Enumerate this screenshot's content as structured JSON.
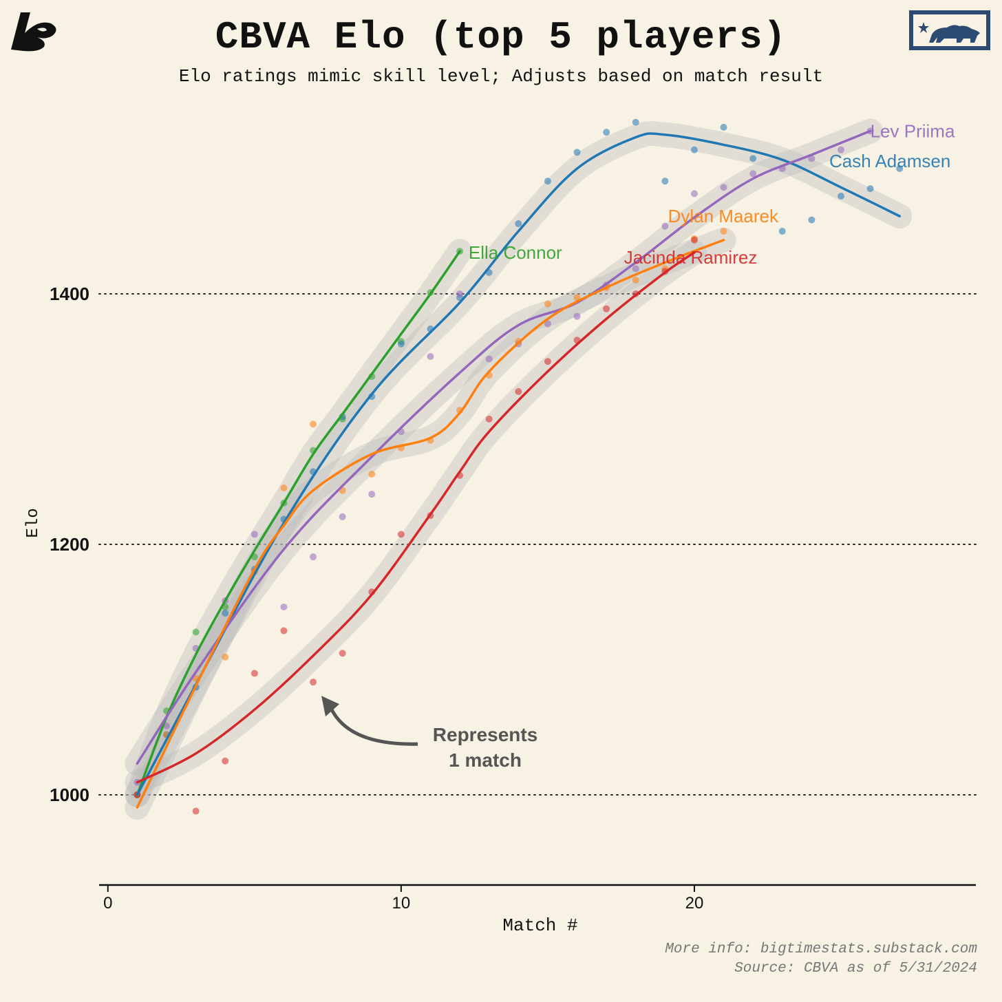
{
  "header": {
    "title": "CBVA Elo (top 5 players)",
    "subtitle": "Elo ratings mimic skill level; Adjusts based on match result"
  },
  "footer": {
    "more_info": "More info: bigtimestats.substack.com",
    "source": "Source: CBVA as of 5/31/2024"
  },
  "logos": {
    "left": "substack-s-logo",
    "right": "california-flag-bear-logo"
  },
  "chart_data": {
    "type": "scatter",
    "xlabel": "Match #",
    "ylabel": "Elo",
    "xlim": [
      -0.3,
      29.6
    ],
    "ylim": [
      928,
      1528
    ],
    "xticks": [
      0,
      10,
      20
    ],
    "yticks": [
      1000,
      1200,
      1400
    ],
    "grid": "horizontal dotted",
    "annotation": {
      "text": [
        "Represents",
        "1 match"
      ],
      "points_to": [
        7,
        1090
      ]
    },
    "series": [
      {
        "name": "Ella Connor",
        "color": "#2ca02c",
        "points": [
          [
            1,
            1000
          ],
          [
            2,
            1067
          ],
          [
            3,
            1130
          ],
          [
            4,
            1150
          ],
          [
            5,
            1190
          ],
          [
            6,
            1233
          ],
          [
            7,
            1275
          ],
          [
            8,
            1300
          ],
          [
            9,
            1334
          ],
          [
            10,
            1362
          ],
          [
            11,
            1401
          ],
          [
            12,
            1434
          ]
        ],
        "trend": [
          [
            1,
            1000
          ],
          [
            2,
            1062
          ],
          [
            3,
            1112
          ],
          [
            4,
            1155
          ],
          [
            5,
            1195
          ],
          [
            6,
            1233
          ],
          [
            7,
            1272
          ],
          [
            8,
            1304
          ],
          [
            9,
            1336
          ],
          [
            10,
            1368
          ],
          [
            11,
            1400
          ],
          [
            12,
            1434
          ]
        ]
      },
      {
        "name": "Cash Adamsen",
        "color": "#1f77b4",
        "points": [
          [
            1,
            1000
          ],
          [
            2,
            1048
          ],
          [
            3,
            1086
          ],
          [
            4,
            1145
          ],
          [
            5,
            1180
          ],
          [
            6,
            1220
          ],
          [
            7,
            1258
          ],
          [
            8,
            1302
          ],
          [
            9,
            1318
          ],
          [
            10,
            1360
          ],
          [
            11,
            1372
          ],
          [
            12,
            1397
          ],
          [
            13,
            1417
          ],
          [
            14,
            1456
          ],
          [
            15,
            1490
          ],
          [
            16,
            1513
          ],
          [
            17,
            1529
          ],
          [
            18,
            1537
          ],
          [
            19,
            1490
          ],
          [
            20,
            1515
          ],
          [
            21,
            1533
          ],
          [
            22,
            1508
          ],
          [
            23,
            1450
          ],
          [
            24,
            1459
          ],
          [
            25,
            1478
          ],
          [
            26,
            1484
          ],
          [
            27,
            1500
          ]
        ],
        "trend": [
          [
            1,
            1000
          ],
          [
            3,
            1088
          ],
          [
            6,
            1217
          ],
          [
            9,
            1320
          ],
          [
            12,
            1393
          ],
          [
            14,
            1450
          ],
          [
            16,
            1500
          ],
          [
            18,
            1525
          ],
          [
            19,
            1527
          ],
          [
            21,
            1519
          ],
          [
            23,
            1507
          ],
          [
            25,
            1485
          ],
          [
            27,
            1462
          ]
        ]
      },
      {
        "name": "Lev Priima",
        "color": "#9467bd",
        "points": [
          [
            1,
            1010
          ],
          [
            2,
            1055
          ],
          [
            3,
            1117
          ],
          [
            4,
            1155
          ],
          [
            5,
            1208
          ],
          [
            6,
            1150
          ],
          [
            7,
            1190
          ],
          [
            8,
            1222
          ],
          [
            9,
            1240
          ],
          [
            10,
            1290
          ],
          [
            11,
            1350
          ],
          [
            12,
            1400
          ],
          [
            13,
            1348
          ],
          [
            14,
            1360
          ],
          [
            15,
            1376
          ],
          [
            16,
            1382
          ],
          [
            17,
            1407
          ],
          [
            18,
            1420
          ],
          [
            19,
            1454
          ],
          [
            20,
            1480
          ],
          [
            21,
            1485
          ],
          [
            22,
            1496
          ],
          [
            23,
            1500
          ],
          [
            24,
            1508
          ],
          [
            25,
            1515
          ],
          [
            26,
            1530
          ]
        ],
        "trend": [
          [
            1,
            1025
          ],
          [
            3,
            1098
          ],
          [
            6,
            1196
          ],
          [
            9,
            1270
          ],
          [
            12,
            1337
          ],
          [
            14,
            1375
          ],
          [
            16,
            1393
          ],
          [
            18,
            1425
          ],
          [
            20,
            1461
          ],
          [
            22,
            1492
          ],
          [
            24,
            1511
          ],
          [
            26,
            1530
          ]
        ]
      },
      {
        "name": "Dylan Maarek",
        "color": "#ff7f0e",
        "points": [
          [
            1,
            1000
          ],
          [
            2,
            1048
          ],
          [
            3,
            1093
          ],
          [
            4,
            1110
          ],
          [
            5,
            1178
          ],
          [
            6,
            1245
          ],
          [
            7,
            1296
          ],
          [
            8,
            1243
          ],
          [
            9,
            1256
          ],
          [
            10,
            1277
          ],
          [
            11,
            1283
          ],
          [
            12,
            1307
          ],
          [
            13,
            1335
          ],
          [
            14,
            1362
          ],
          [
            15,
            1392
          ],
          [
            16,
            1397
          ],
          [
            17,
            1405
          ],
          [
            18,
            1411
          ],
          [
            19,
            1420
          ],
          [
            20,
            1444
          ],
          [
            21,
            1450
          ]
        ],
        "trend": [
          [
            1,
            990
          ],
          [
            3,
            1087
          ],
          [
            5,
            1180
          ],
          [
            6,
            1215
          ],
          [
            7,
            1243
          ],
          [
            9,
            1272
          ],
          [
            11,
            1285
          ],
          [
            12,
            1305
          ],
          [
            13,
            1338
          ],
          [
            15,
            1380
          ],
          [
            17,
            1405
          ],
          [
            19,
            1425
          ],
          [
            21,
            1443
          ]
        ]
      },
      {
        "name": "Jacinda Ramirez",
        "color": "#d62728",
        "points": [
          [
            1,
            1000
          ],
          [
            3,
            987
          ],
          [
            4,
            1027
          ],
          [
            5,
            1097
          ],
          [
            6,
            1131
          ],
          [
            7,
            1090
          ],
          [
            8,
            1113
          ],
          [
            9,
            1162
          ],
          [
            10,
            1208
          ],
          [
            11,
            1223
          ],
          [
            12,
            1255
          ],
          [
            13,
            1300
          ],
          [
            14,
            1322
          ],
          [
            15,
            1346
          ],
          [
            16,
            1363
          ],
          [
            17,
            1388
          ],
          [
            18,
            1400
          ],
          [
            19,
            1418
          ],
          [
            20,
            1443
          ]
        ],
        "trend": [
          [
            1,
            1010
          ],
          [
            3,
            1033
          ],
          [
            5,
            1068
          ],
          [
            7,
            1111
          ],
          [
            9,
            1160
          ],
          [
            11,
            1224
          ],
          [
            12,
            1258
          ],
          [
            13,
            1290
          ],
          [
            15,
            1338
          ],
          [
            17,
            1380
          ],
          [
            19,
            1417
          ],
          [
            20,
            1433
          ]
        ]
      }
    ],
    "labels": [
      {
        "series": "Ella Connor",
        "text": "Ella Connor",
        "at": [
          12.3,
          1433
        ]
      },
      {
        "series": "Lev Priima",
        "text": "Lev Priima",
        "at": [
          26.0,
          1530
        ]
      },
      {
        "series": "Cash Adamsen",
        "text": "Cash Adamsen",
        "at": [
          24.6,
          1506
        ]
      },
      {
        "series": "Dylan Maarek",
        "text": "Dylan Maarek",
        "at": [
          19.1,
          1462
        ]
      },
      {
        "series": "Jacinda Ramirez",
        "text": "Jacinda Ramirez",
        "at": [
          17.6,
          1429
        ]
      }
    ]
  }
}
